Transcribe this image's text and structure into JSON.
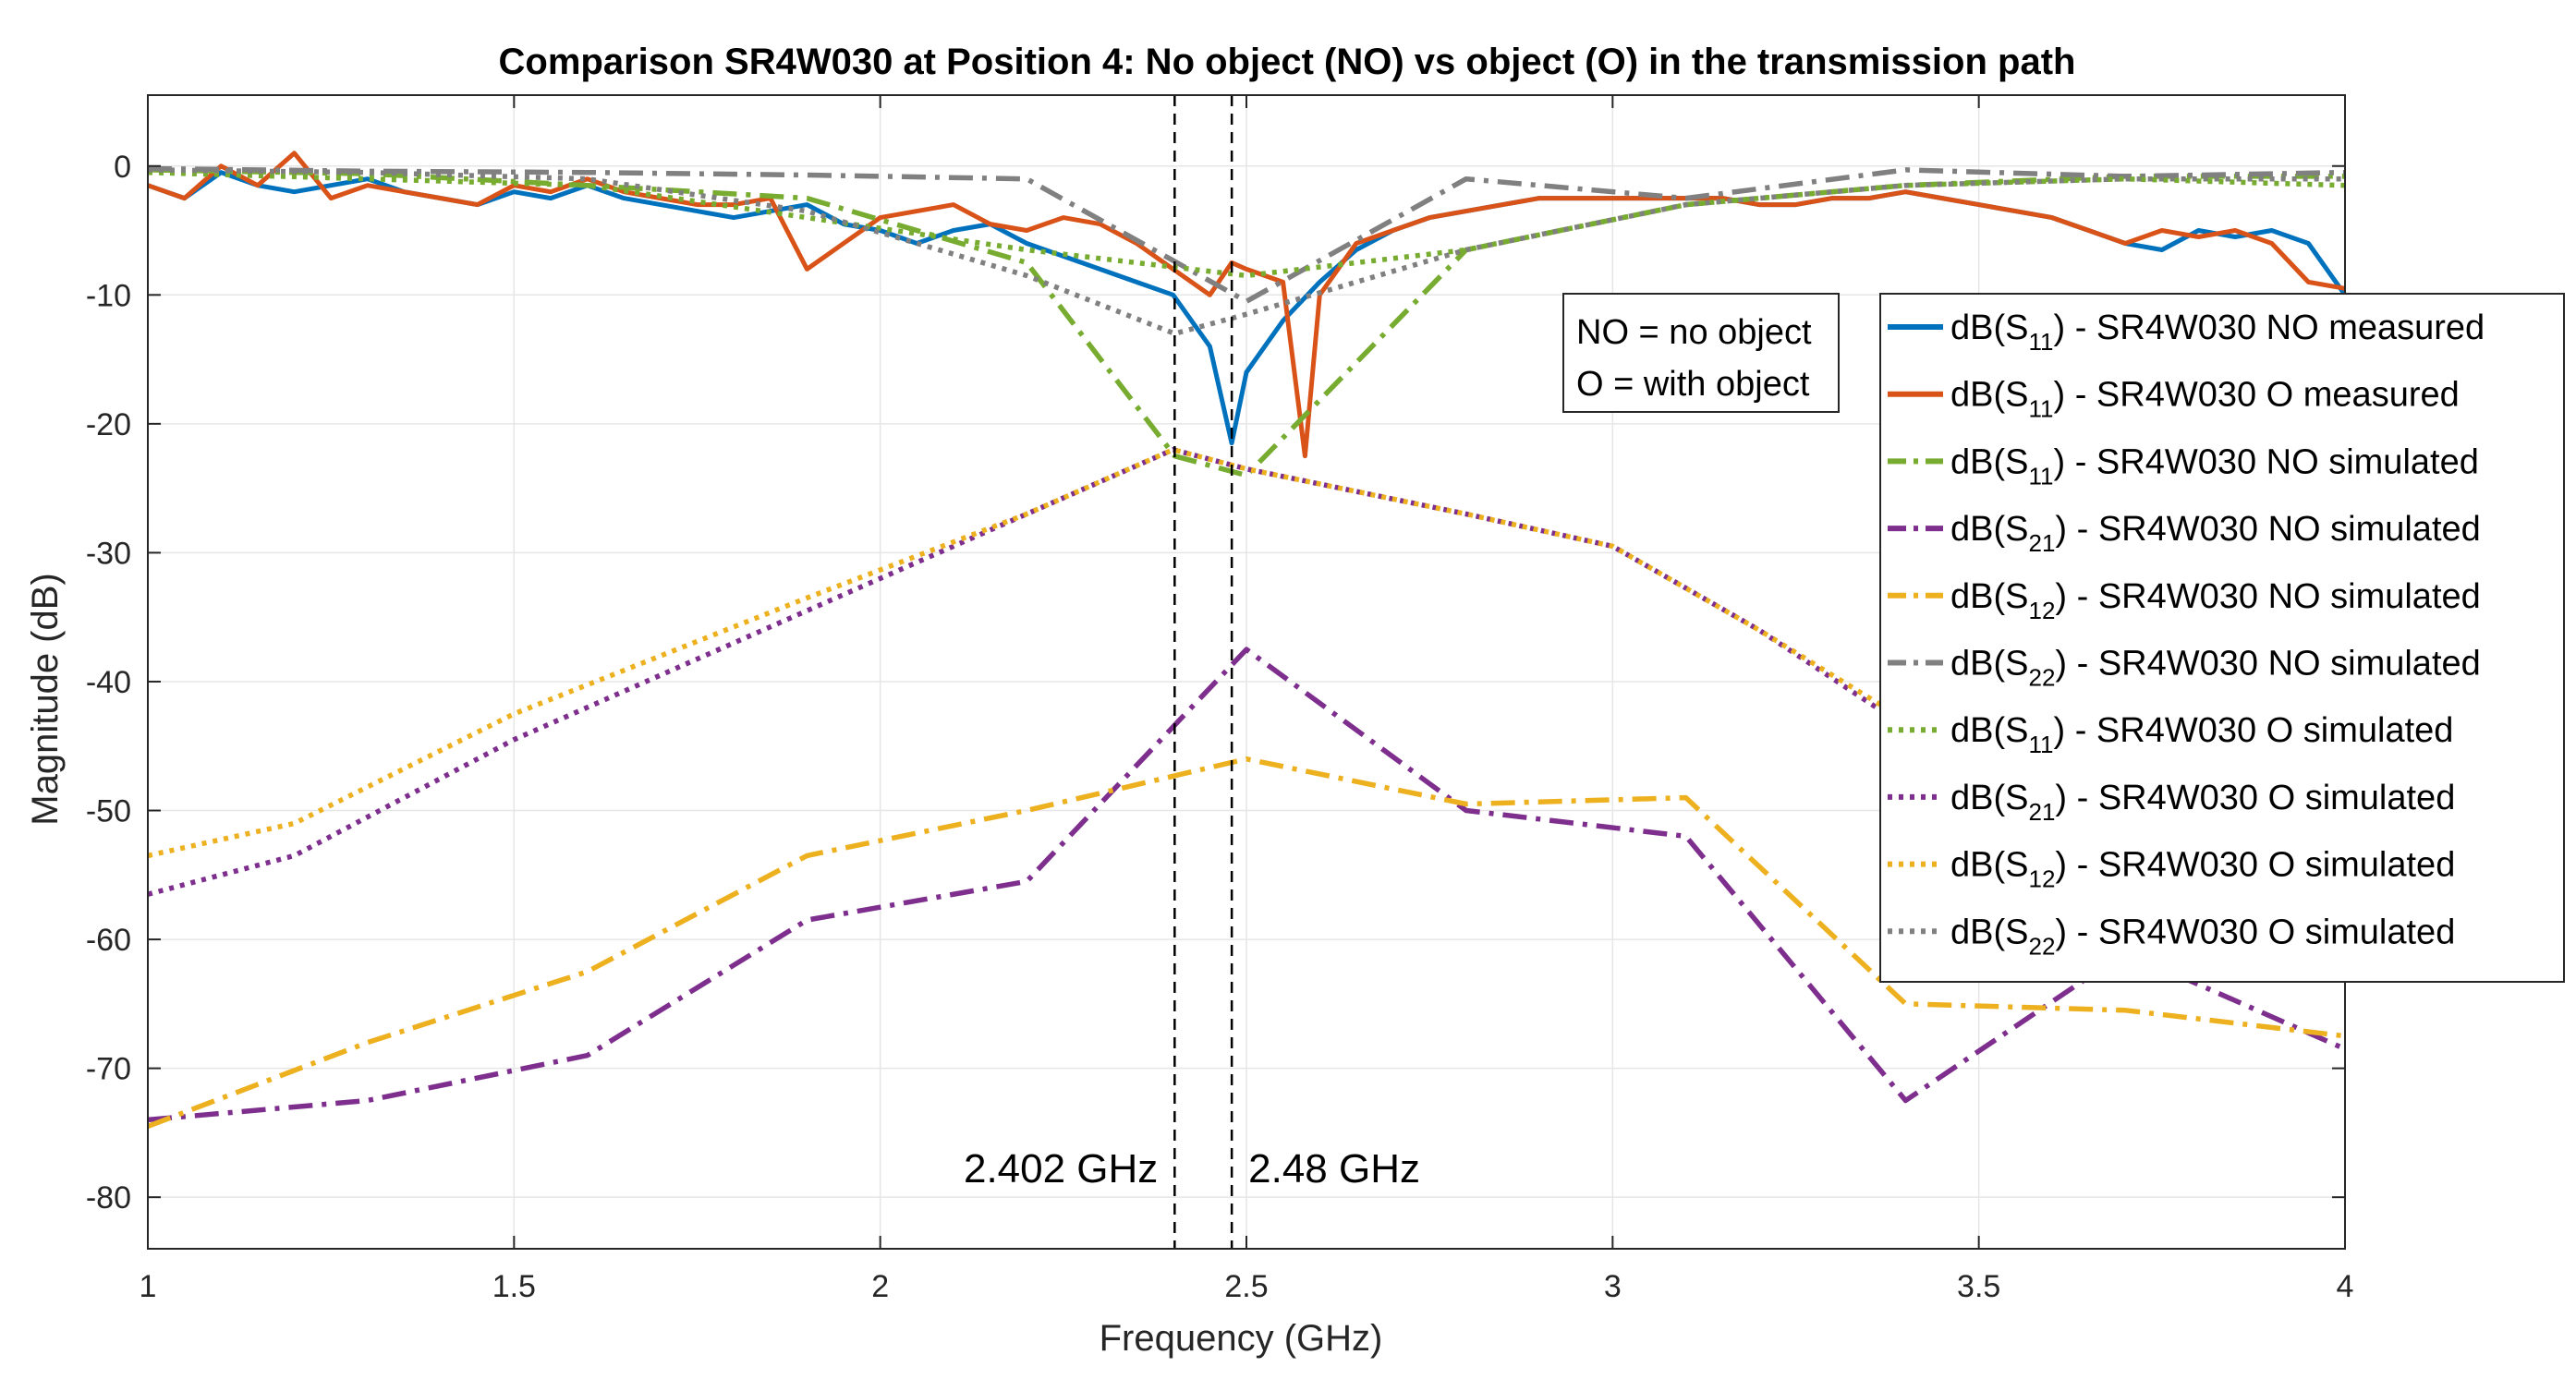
{
  "chart_data": {
    "type": "line",
    "title": "Comparison SR4W030 at Position 4: No object (NO) vs object (O) in the transmission path",
    "xlabel": "Frequency (GHz)",
    "ylabel": "Magnitude (dB)",
    "xlim": [
      1,
      4
    ],
    "ylim": [
      -84,
      5.5
    ],
    "xticks": [
      1,
      1.5,
      2,
      2.5,
      3,
      3.5,
      4
    ],
    "xtick_labels": [
      "1",
      "1.5",
      "2",
      "2.5",
      "3",
      "3.5",
      "4"
    ],
    "yticks": [
      0,
      -10,
      -20,
      -30,
      -40,
      -50,
      -60,
      -70,
      -80
    ],
    "ytick_labels": [
      "0",
      "-10",
      "-20",
      "-30",
      "-40",
      "-50",
      "-60",
      "-70",
      "-80"
    ],
    "grid": true,
    "legend_position": "right",
    "vlines": [
      {
        "x": 2.402,
        "label": "2.402 GHz"
      },
      {
        "x": 2.48,
        "label": "2.48 GHz"
      }
    ],
    "annotation": {
      "lines": [
        "NO = no object",
        "O = with object"
      ]
    },
    "series": [
      {
        "name": "dB(S11) - SR4W030 NO measured",
        "legend": {
          "pre": "dB(S",
          "sub": "11",
          "post": ") - SR4W030 NO measured"
        },
        "color": "#0072BD",
        "style": "solid",
        "x": [
          1.0,
          1.05,
          1.1,
          1.15,
          1.2,
          1.25,
          1.3,
          1.35,
          1.4,
          1.45,
          1.5,
          1.55,
          1.6,
          1.65,
          1.7,
          1.75,
          1.8,
          1.85,
          1.9,
          1.95,
          2.0,
          2.05,
          2.1,
          2.15,
          2.2,
          2.25,
          2.3,
          2.35,
          2.4,
          2.45,
          2.48,
          2.5,
          2.55,
          2.6,
          2.65,
          2.7,
          2.75,
          2.8,
          2.85,
          2.9,
          2.95,
          3.0,
          3.05,
          3.1,
          3.15,
          3.2,
          3.25,
          3.3,
          3.35,
          3.4,
          3.45,
          3.5,
          3.55,
          3.6,
          3.65,
          3.7,
          3.75,
          3.8,
          3.85,
          3.9,
          3.95,
          4.0
        ],
        "y": [
          -1.5,
          -2.5,
          -0.5,
          -1.5,
          -2.0,
          -1.5,
          -1.0,
          -2.0,
          -2.5,
          -3.0,
          -2.0,
          -2.5,
          -1.5,
          -2.5,
          -3.0,
          -3.5,
          -4.0,
          -3.5,
          -3.0,
          -4.5,
          -5.0,
          -6.0,
          -5.0,
          -4.5,
          -6.0,
          -7.0,
          -8.0,
          -9.0,
          -10.0,
          -14.0,
          -21.5,
          -16.0,
          -12.0,
          -9.0,
          -6.5,
          -5.0,
          -4.0,
          -3.5,
          -3.0,
          -2.5,
          -2.5,
          -2.5,
          -2.5,
          -2.5,
          -2.5,
          -3.0,
          -3.0,
          -2.5,
          -2.5,
          -2.0,
          -2.5,
          -3.0,
          -3.5,
          -4.0,
          -5.0,
          -6.0,
          -6.5,
          -5.0,
          -5.5,
          -5.0,
          -6.0,
          -10.0
        ]
      },
      {
        "name": "dB(S11) - SR4W030 O measured",
        "legend": {
          "pre": "dB(S",
          "sub": "11",
          "post": ") - SR4W030 O measured"
        },
        "color": "#D95319",
        "style": "solid",
        "x": [
          1.0,
          1.05,
          1.1,
          1.15,
          1.2,
          1.25,
          1.3,
          1.35,
          1.4,
          1.45,
          1.5,
          1.55,
          1.6,
          1.65,
          1.7,
          1.75,
          1.8,
          1.85,
          1.9,
          1.95,
          2.0,
          2.05,
          2.1,
          2.15,
          2.2,
          2.25,
          2.3,
          2.35,
          2.4,
          2.45,
          2.48,
          2.5,
          2.55,
          2.58,
          2.6,
          2.65,
          2.7,
          2.75,
          2.8,
          2.85,
          2.9,
          2.95,
          3.0,
          3.05,
          3.1,
          3.15,
          3.2,
          3.25,
          3.3,
          3.35,
          3.4,
          3.45,
          3.5,
          3.55,
          3.6,
          3.65,
          3.7,
          3.75,
          3.8,
          3.85,
          3.9,
          3.95,
          4.0
        ],
        "y": [
          -1.5,
          -2.5,
          0.0,
          -1.5,
          1.0,
          -2.5,
          -1.5,
          -2.0,
          -2.5,
          -3.0,
          -1.5,
          -2.0,
          -1.0,
          -2.0,
          -2.5,
          -3.0,
          -3.0,
          -2.5,
          -8.0,
          -6.0,
          -4.0,
          -3.5,
          -3.0,
          -4.5,
          -5.0,
          -4.0,
          -4.5,
          -6.0,
          -8.0,
          -10.0,
          -7.5,
          -8.0,
          -9.0,
          -22.5,
          -10.0,
          -6.0,
          -5.0,
          -4.0,
          -3.5,
          -3.0,
          -2.5,
          -2.5,
          -2.5,
          -2.5,
          -2.5,
          -2.5,
          -3.0,
          -3.0,
          -2.5,
          -2.5,
          -2.0,
          -2.5,
          -3.0,
          -3.5,
          -4.0,
          -5.0,
          -6.0,
          -5.0,
          -5.5,
          -5.0,
          -6.0,
          -9.0,
          -9.5
        ]
      },
      {
        "name": "dB(S11) - SR4W030 NO simulated",
        "legend": {
          "pre": "dB(S",
          "sub": "11",
          "post": ") - SR4W030 NO simulated"
        },
        "color": "#77AC30",
        "style": "dashdot",
        "x": [
          1.0,
          1.3,
          1.6,
          1.9,
          2.2,
          2.402,
          2.5,
          2.8,
          3.1,
          3.4,
          3.7,
          4.0
        ],
        "y": [
          -0.3,
          -0.6,
          -1.5,
          -2.5,
          -7.5,
          -22.5,
          -24.0,
          -6.5,
          -3.0,
          -1.5,
          -0.8,
          -0.8
        ]
      },
      {
        "name": "dB(S21) - SR4W030 NO simulated",
        "legend": {
          "pre": "dB(S",
          "sub": "21",
          "post": ") - SR4W030 NO simulated"
        },
        "color": "#7E2F8E",
        "style": "dashdot",
        "x": [
          1.0,
          1.3,
          1.6,
          1.9,
          2.2,
          2.5,
          2.8,
          3.1,
          3.4,
          3.7,
          4.0
        ],
        "y": [
          -74.0,
          -72.5,
          -69.0,
          -58.5,
          -55.5,
          -37.5,
          -50.0,
          -52.0,
          -72.5,
          -61.0,
          -68.5
        ]
      },
      {
        "name": "dB(S12) - SR4W030 NO simulated",
        "legend": {
          "pre": "dB(S",
          "sub": "12",
          "post": ") - SR4W030 NO simulated"
        },
        "color": "#EDB120",
        "style": "dashdot",
        "x": [
          1.0,
          1.3,
          1.6,
          1.9,
          2.2,
          2.5,
          2.8,
          3.1,
          3.4,
          3.7,
          4.0
        ],
        "y": [
          -74.5,
          -68.0,
          -62.5,
          -53.5,
          -50.0,
          -46.0,
          -49.5,
          -49.0,
          -65.0,
          -65.5,
          -67.5
        ]
      },
      {
        "name": "dB(S22) - SR4W030 NO simulated",
        "legend": {
          "pre": "dB(S",
          "sub": "22",
          "post": ") - SR4W030 NO simulated"
        },
        "color": "#808080",
        "style": "dashdot",
        "x": [
          1.0,
          1.3,
          1.6,
          1.9,
          2.2,
          2.5,
          2.8,
          3.1,
          3.4,
          3.7,
          4.0
        ],
        "y": [
          -0.2,
          -0.4,
          -0.5,
          -0.7,
          -1.0,
          -10.5,
          -1.0,
          -2.5,
          -0.3,
          -0.8,
          -0.5
        ]
      },
      {
        "name": "dB(S11) - SR4W030 O simulated",
        "legend": {
          "pre": "dB(S",
          "sub": "11",
          "post": ") - SR4W030 O simulated"
        },
        "color": "#77AC30",
        "style": "dotted",
        "x": [
          1.0,
          1.3,
          1.6,
          1.9,
          2.2,
          2.5,
          2.8,
          3.1,
          3.4,
          3.7,
          4.0
        ],
        "y": [
          -0.5,
          -1.0,
          -1.5,
          -4.0,
          -6.5,
          -8.5,
          -6.5,
          -3.0,
          -1.5,
          -1.0,
          -1.5
        ]
      },
      {
        "name": "dB(S21) - SR4W030 O simulated",
        "legend": {
          "pre": "dB(S",
          "sub": "21",
          "post": ") - SR4W030 O simulated"
        },
        "color": "#7E2F8E",
        "style": "dotted",
        "x": [
          1.0,
          1.2,
          1.5,
          1.9,
          2.2,
          2.4,
          2.5,
          2.8,
          3.0,
          3.2,
          3.4
        ],
        "y": [
          -56.5,
          -53.5,
          -44.5,
          -34.5,
          -27.0,
          -22.0,
          -23.5,
          -27.0,
          -29.5,
          -36.0,
          -43.5
        ]
      },
      {
        "name": "dB(S12) - SR4W030 O simulated",
        "legend": {
          "pre": "dB(S",
          "sub": "12",
          "post": ") - SR4W030 O simulated"
        },
        "color": "#EDB120",
        "style": "dotted",
        "x": [
          1.0,
          1.2,
          1.5,
          1.9,
          2.2,
          2.4,
          2.5,
          2.8,
          3.0,
          3.2,
          3.4
        ],
        "y": [
          -53.5,
          -51.0,
          -42.5,
          -33.5,
          -27.0,
          -22.0,
          -23.5,
          -27.0,
          -29.5,
          -36.0,
          -43.0
        ]
      },
      {
        "name": "dB(S22) - SR4W030 O simulated",
        "legend": {
          "pre": "dB(S",
          "sub": "22",
          "post": ") - SR4W030 O simulated"
        },
        "color": "#808080",
        "style": "dotted",
        "x": [
          1.0,
          1.3,
          1.6,
          1.9,
          2.2,
          2.402,
          2.5,
          2.8,
          3.1,
          3.4,
          3.7,
          4.0
        ],
        "y": [
          -0.3,
          -0.5,
          -1.0,
          -3.5,
          -8.5,
          -13.0,
          -11.5,
          -6.5,
          -3.0,
          -1.5,
          -1.0,
          -1.0
        ]
      }
    ]
  }
}
